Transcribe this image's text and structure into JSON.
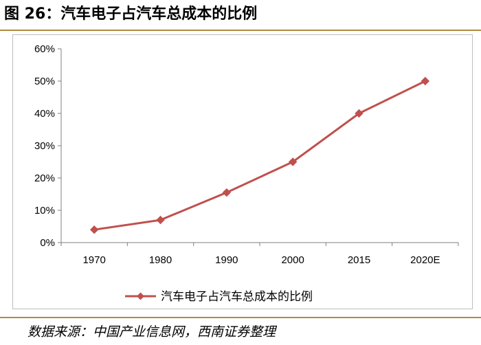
{
  "figure": {
    "title": "图 26：汽车电子占汽车总成本的比例",
    "source": "数据来源：中国产业信息网，西南证券整理"
  },
  "colors": {
    "series": "#c0504d",
    "axis": "#7f7f7f",
    "rule": "#b08a3e"
  },
  "chart_data": {
    "type": "line",
    "title": "",
    "xlabel": "",
    "ylabel": "",
    "categories": [
      "1970",
      "1980",
      "1990",
      "2000",
      "2015",
      "2020E"
    ],
    "series": [
      {
        "name": "汽车电子占汽车总成本的比例",
        "values": [
          4,
          7,
          15.5,
          25,
          40,
          50
        ],
        "marker": "diamond"
      }
    ],
    "ylim": [
      0,
      60
    ],
    "yticks": [
      "0%",
      "10%",
      "20%",
      "30%",
      "40%",
      "50%",
      "60%"
    ],
    "grid": false,
    "legend": "bottom"
  }
}
